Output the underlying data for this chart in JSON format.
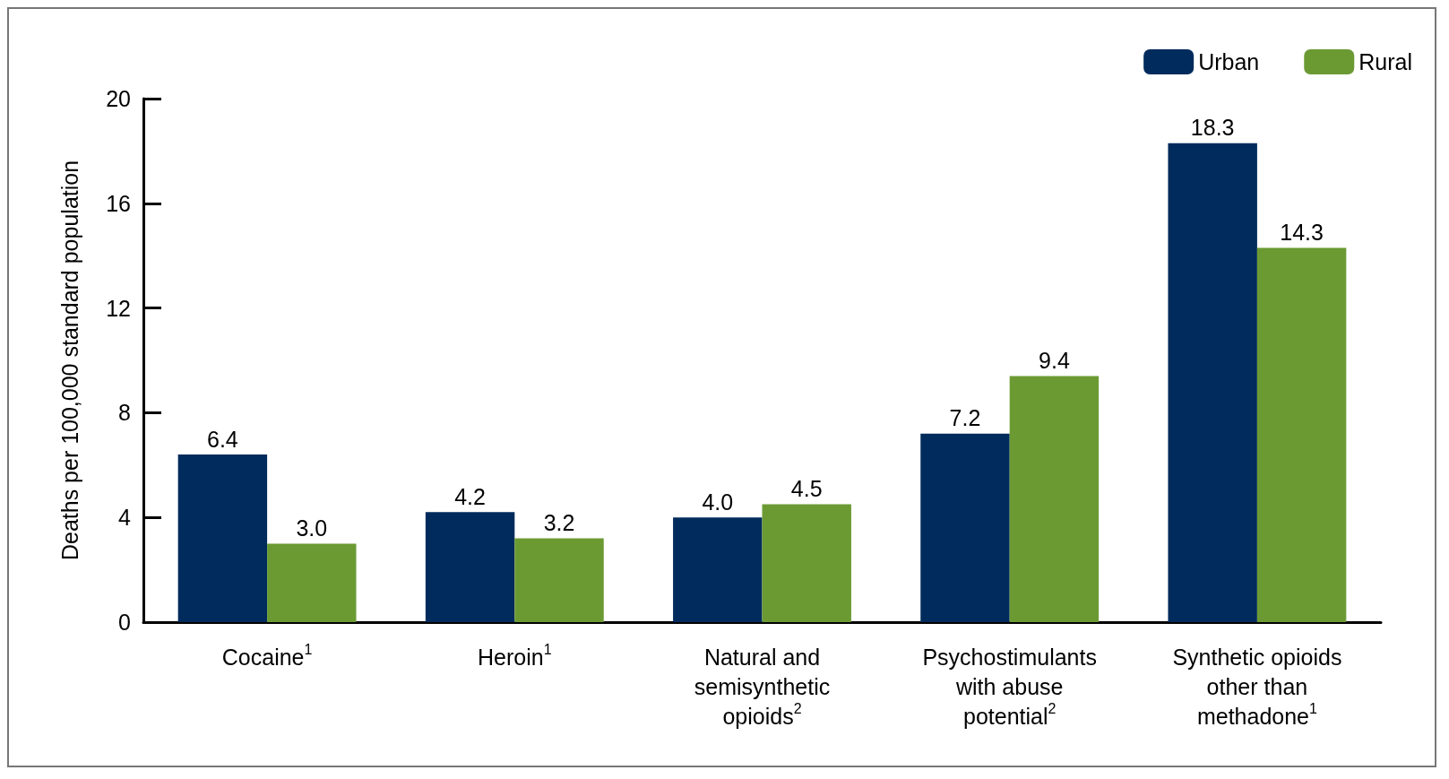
{
  "chart_data": {
    "type": "bar",
    "ylabel": "Deaths per 100,000 standard population",
    "categories": [
      "Cocaine$^{1}$",
      "Heroin$^{1}$",
      "Natural and semisynthetic opioids$^{2}$",
      "Psychostimulants with abuse potential$^{2}$",
      "Synthetic opioids other than methadone$^{1}$"
    ],
    "series": [
      {
        "name": "Urban",
        "color": "#002b5c",
        "values": [
          6.4,
          4.2,
          4.0,
          7.2,
          18.3
        ],
        "value_labels": [
          "6.4",
          "4.2",
          "4.0",
          "7.2",
          "18.3"
        ]
      },
      {
        "name": "Rural",
        "color": "#6b9a33",
        "values": [
          3.0,
          3.2,
          4.5,
          9.4,
          14.3
        ],
        "value_labels": [
          "3.0",
          "3.2",
          "4.5",
          "9.4",
          "14.3"
        ]
      }
    ],
    "ylim": [
      0,
      20
    ],
    "yticks": [
      0,
      4,
      8,
      12,
      16,
      20
    ],
    "grid": false,
    "legend": "top right"
  }
}
